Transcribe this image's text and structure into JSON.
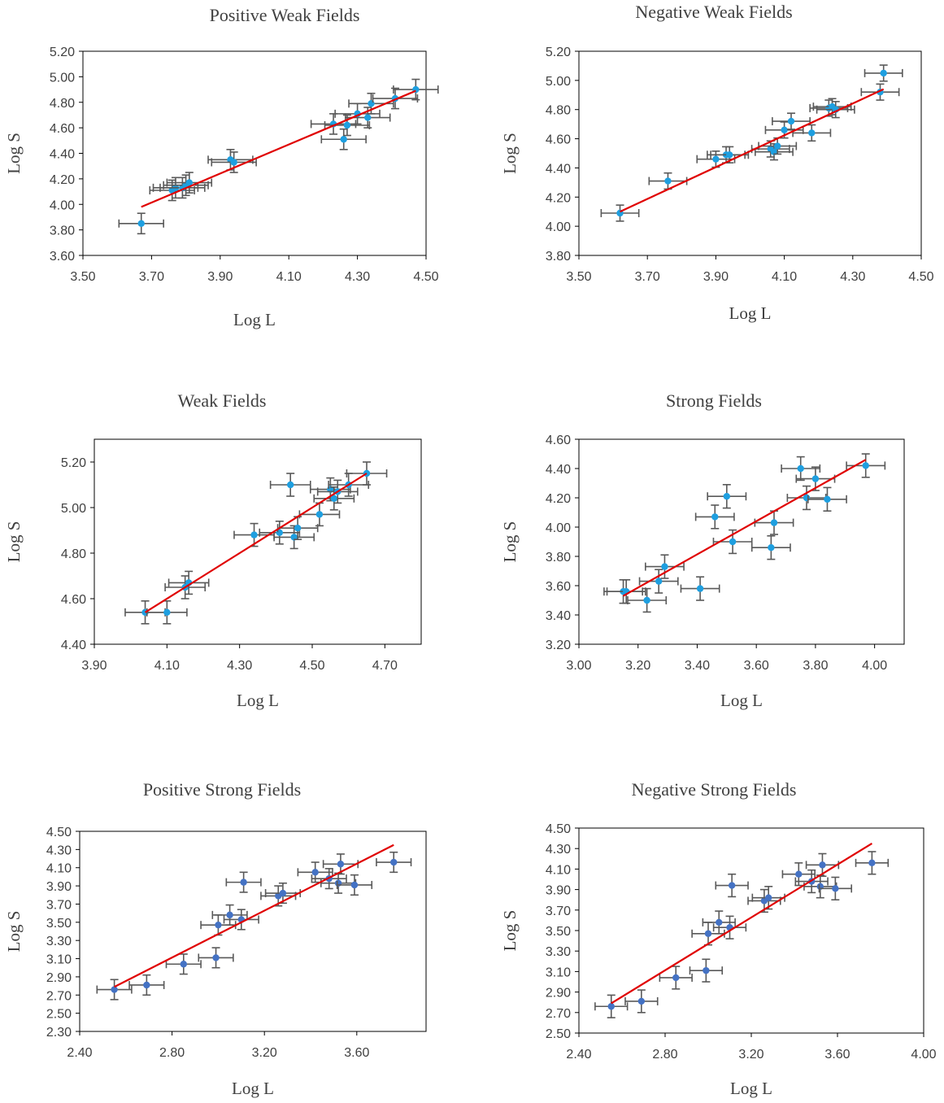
{
  "figure": {
    "colors": {
      "point": "#1e9fe0",
      "point_dark": "#4472c4",
      "errorbar": "#595959",
      "fit": "#e00000",
      "axis": "#000000",
      "tick_text": "#404040"
    }
  },
  "chart_data": [
    {
      "type": "scatter",
      "title": "Positive Weak Fields",
      "xlabel": "Log L",
      "ylabel": "Log S",
      "xlim": [
        3.5,
        4.5
      ],
      "ylim": [
        3.6,
        5.2
      ],
      "xticks": [
        "3.50",
        "3.70",
        "3.90",
        "4.10",
        "4.30",
        "4.50"
      ],
      "yticks": [
        "3.60",
        "3.80",
        "4.00",
        "4.20",
        "4.40",
        "4.60",
        "4.80",
        "5.00",
        "5.20"
      ],
      "xerr": 0.065,
      "yerr": 0.08,
      "fit": {
        "x": [
          3.67,
          4.47
        ],
        "y": [
          3.98,
          4.89
        ]
      },
      "points": [
        {
          "x": 3.67,
          "y": 3.85
        },
        {
          "x": 3.76,
          "y": 4.11
        },
        {
          "x": 3.77,
          "y": 4.13
        },
        {
          "x": 3.79,
          "y": 4.13
        },
        {
          "x": 3.8,
          "y": 4.15
        },
        {
          "x": 3.81,
          "y": 4.17
        },
        {
          "x": 3.93,
          "y": 4.35
        },
        {
          "x": 3.94,
          "y": 4.33
        },
        {
          "x": 4.23,
          "y": 4.63
        },
        {
          "x": 4.26,
          "y": 4.51
        },
        {
          "x": 4.27,
          "y": 4.62
        },
        {
          "x": 4.3,
          "y": 4.71
        },
        {
          "x": 4.33,
          "y": 4.68
        },
        {
          "x": 4.34,
          "y": 4.79
        },
        {
          "x": 4.41,
          "y": 4.83
        },
        {
          "x": 4.47,
          "y": 4.9
        }
      ]
    },
    {
      "type": "scatter",
      "title": "Negative Weak Fields",
      "xlabel": "Log L",
      "ylabel": "Log S",
      "xlim": [
        3.5,
        4.5
      ],
      "ylim": [
        3.8,
        5.2
      ],
      "xticks": [
        "3.50",
        "3.70",
        "3.90",
        "4.10",
        "4.30",
        "4.50"
      ],
      "yticks": [
        "3.80",
        "4.00",
        "4.20",
        "4.40",
        "4.60",
        "4.80",
        "5.00",
        "5.20"
      ],
      "xerr": 0.055,
      "yerr": 0.055,
      "fit": {
        "x": [
          3.62,
          4.39
        ],
        "y": [
          4.1,
          4.94
        ]
      },
      "points": [
        {
          "x": 3.62,
          "y": 4.09
        },
        {
          "x": 3.76,
          "y": 4.31
        },
        {
          "x": 3.9,
          "y": 4.46
        },
        {
          "x": 3.93,
          "y": 4.49
        },
        {
          "x": 3.94,
          "y": 4.49
        },
        {
          "x": 4.06,
          "y": 4.53
        },
        {
          "x": 4.07,
          "y": 4.51
        },
        {
          "x": 4.08,
          "y": 4.55
        },
        {
          "x": 4.1,
          "y": 4.66
        },
        {
          "x": 4.12,
          "y": 4.72
        },
        {
          "x": 4.18,
          "y": 4.64
        },
        {
          "x": 4.23,
          "y": 4.81
        },
        {
          "x": 4.24,
          "y": 4.82
        },
        {
          "x": 4.25,
          "y": 4.8
        },
        {
          "x": 4.38,
          "y": 4.92
        },
        {
          "x": 4.39,
          "y": 5.05
        }
      ]
    },
    {
      "type": "scatter",
      "title": "Weak Fields",
      "xlabel": "Log L",
      "ylabel": "Log S",
      "xlim": [
        3.9,
        4.8
      ],
      "ylim": [
        4.4,
        5.3
      ],
      "xticks": [
        "3.90",
        "4.10",
        "4.30",
        "4.50",
        "4.70"
      ],
      "yticks": [
        "4.40",
        "4.60",
        "4.80",
        "5.00",
        "5.20"
      ],
      "xerr": 0.055,
      "yerr": 0.05,
      "fit": {
        "x": [
          4.04,
          4.65
        ],
        "y": [
          4.54,
          5.15
        ]
      },
      "points": [
        {
          "x": 4.04,
          "y": 4.54
        },
        {
          "x": 4.1,
          "y": 4.54
        },
        {
          "x": 4.15,
          "y": 4.65
        },
        {
          "x": 4.16,
          "y": 4.67
        },
        {
          "x": 4.34,
          "y": 4.88
        },
        {
          "x": 4.41,
          "y": 4.89
        },
        {
          "x": 4.44,
          "y": 5.1
        },
        {
          "x": 4.45,
          "y": 4.87
        },
        {
          "x": 4.46,
          "y": 4.91
        },
        {
          "x": 4.52,
          "y": 4.97
        },
        {
          "x": 4.55,
          "y": 5.08
        },
        {
          "x": 4.56,
          "y": 5.04
        },
        {
          "x": 4.57,
          "y": 5.07
        },
        {
          "x": 4.6,
          "y": 5.1
        },
        {
          "x": 4.65,
          "y": 5.15
        }
      ]
    },
    {
      "type": "scatter",
      "title": "Strong Fields",
      "xlabel": "Log L",
      "ylabel": "Log S",
      "xlim": [
        3.0,
        4.1
      ],
      "ylim": [
        3.2,
        4.6
      ],
      "xticks": [
        "3.00",
        "3.20",
        "3.40",
        "3.60",
        "3.80",
        "4.00"
      ],
      "yticks": [
        "3.20",
        "3.40",
        "3.60",
        "3.80",
        "4.00",
        "4.20",
        "4.40",
        "4.60"
      ],
      "xerr": 0.065,
      "yerr": 0.08,
      "fit": {
        "x": [
          3.15,
          3.97
        ],
        "y": [
          3.53,
          4.46
        ]
      },
      "points": [
        {
          "x": 3.15,
          "y": 3.56
        },
        {
          "x": 3.16,
          "y": 3.56
        },
        {
          "x": 3.23,
          "y": 3.5
        },
        {
          "x": 3.27,
          "y": 3.63
        },
        {
          "x": 3.29,
          "y": 3.73
        },
        {
          "x": 3.41,
          "y": 3.58
        },
        {
          "x": 3.46,
          "y": 4.07
        },
        {
          "x": 3.5,
          "y": 4.21
        },
        {
          "x": 3.52,
          "y": 3.9
        },
        {
          "x": 3.65,
          "y": 3.86
        },
        {
          "x": 3.66,
          "y": 4.03
        },
        {
          "x": 3.75,
          "y": 4.4
        },
        {
          "x": 3.77,
          "y": 4.2
        },
        {
          "x": 3.8,
          "y": 4.33
        },
        {
          "x": 3.84,
          "y": 4.19
        },
        {
          "x": 3.97,
          "y": 4.42
        }
      ]
    },
    {
      "type": "scatter",
      "title": "Positive Strong Fields",
      "xlabel": "Log L",
      "ylabel": "Log S",
      "xlim": [
        2.4,
        3.9
      ],
      "ylim": [
        2.3,
        4.5
      ],
      "xticks": [
        "2.40",
        "2.80",
        "3.20",
        "3.60"
      ],
      "yticks": [
        "2.30",
        "2.50",
        "2.70",
        "2.90",
        "3.10",
        "3.30",
        "3.50",
        "3.70",
        "3.90",
        "4.10",
        "4.30",
        "4.50"
      ],
      "xerr": 0.075,
      "yerr": 0.11,
      "fit": {
        "x": [
          2.55,
          3.76
        ],
        "y": [
          2.79,
          4.35
        ]
      },
      "points": [
        {
          "x": 2.55,
          "y": 2.76
        },
        {
          "x": 2.69,
          "y": 2.81
        },
        {
          "x": 2.85,
          "y": 3.04
        },
        {
          "x": 2.99,
          "y": 3.11
        },
        {
          "x": 3.0,
          "y": 3.47
        },
        {
          "x": 3.05,
          "y": 3.58
        },
        {
          "x": 3.1,
          "y": 3.53
        },
        {
          "x": 3.11,
          "y": 3.94
        },
        {
          "x": 3.26,
          "y": 3.79
        },
        {
          "x": 3.28,
          "y": 3.82
        },
        {
          "x": 3.42,
          "y": 4.05
        },
        {
          "x": 3.48,
          "y": 3.98
        },
        {
          "x": 3.52,
          "y": 3.93
        },
        {
          "x": 3.53,
          "y": 4.14
        },
        {
          "x": 3.59,
          "y": 3.91
        },
        {
          "x": 3.76,
          "y": 4.16
        }
      ]
    },
    {
      "type": "scatter",
      "title": "Negative Strong Fields",
      "xlabel": "Log L",
      "ylabel": "Log S",
      "xlim": [
        2.4,
        4.0
      ],
      "ylim": [
        2.5,
        4.5
      ],
      "xticks": [
        "2.40",
        "2.80",
        "3.20",
        "3.60",
        "4.00"
      ],
      "yticks": [
        "2.50",
        "2.70",
        "2.90",
        "3.10",
        "3.30",
        "3.50",
        "3.70",
        "3.90",
        "4.10",
        "4.30",
        "4.50"
      ],
      "xerr": 0.075,
      "yerr": 0.11,
      "fit": {
        "x": [
          2.55,
          3.76
        ],
        "y": [
          2.79,
          4.35
        ]
      },
      "points": [
        {
          "x": 2.55,
          "y": 2.76
        },
        {
          "x": 2.69,
          "y": 2.81
        },
        {
          "x": 2.85,
          "y": 3.04
        },
        {
          "x": 2.99,
          "y": 3.11
        },
        {
          "x": 3.0,
          "y": 3.47
        },
        {
          "x": 3.05,
          "y": 3.58
        },
        {
          "x": 3.1,
          "y": 3.53
        },
        {
          "x": 3.11,
          "y": 3.94
        },
        {
          "x": 3.26,
          "y": 3.79
        },
        {
          "x": 3.28,
          "y": 3.82
        },
        {
          "x": 3.42,
          "y": 4.05
        },
        {
          "x": 3.48,
          "y": 3.98
        },
        {
          "x": 3.52,
          "y": 3.93
        },
        {
          "x": 3.53,
          "y": 4.14
        },
        {
          "x": 3.59,
          "y": 3.91
        },
        {
          "x": 3.76,
          "y": 4.16
        }
      ]
    }
  ]
}
